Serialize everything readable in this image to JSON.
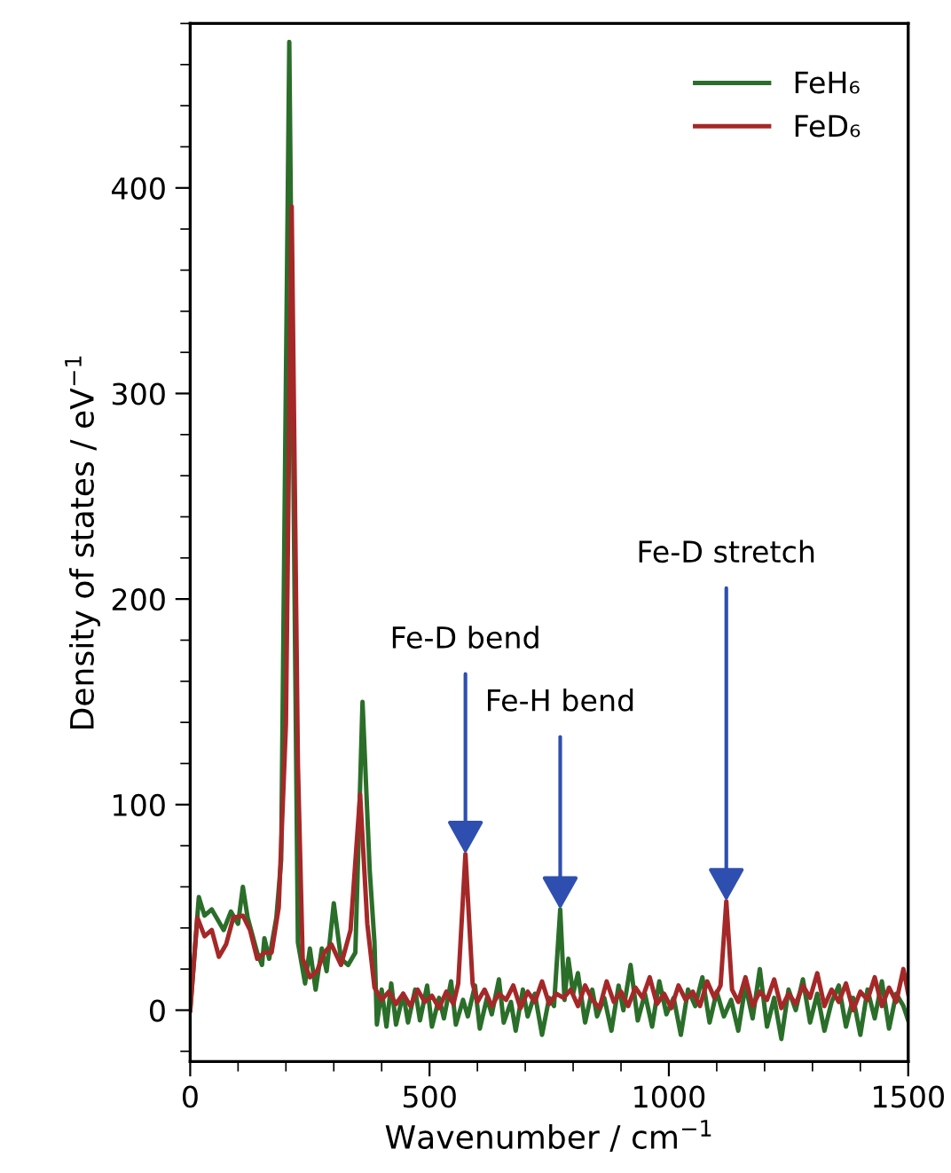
{
  "chart_data": {
    "type": "line",
    "xlabel": "Wavenumber / cm$^{−1}$",
    "ylabel": "Density of states / eV$^{−1}$",
    "xlim": [
      0,
      1500
    ],
    "ylim": [
      -25,
      480
    ],
    "xticks": [
      0,
      500,
      1000,
      1500
    ],
    "yticks": [
      0,
      100,
      200,
      300,
      400
    ],
    "legend": "top right",
    "grid": false,
    "line_style": "solid",
    "marker": "none",
    "series": [
      {
        "name": "FeH₆",
        "color": "#2a6e2a",
        "x": [
          0,
          18,
          30,
          45,
          55,
          70,
          85,
          100,
          110,
          120,
          140,
          150,
          155,
          165,
          180,
          190,
          207,
          225,
          240,
          250,
          262,
          275,
          285,
          300,
          315,
          330,
          345,
          360,
          375,
          385,
          390,
          400,
          410,
          420,
          430,
          445,
          455,
          470,
          480,
          495,
          505,
          520,
          530,
          545,
          555,
          570,
          580,
          595,
          605,
          620,
          630,
          645,
          655,
          670,
          680,
          695,
          705,
          720,
          735,
          750,
          760,
          773,
          782,
          790,
          800,
          810,
          825,
          840,
          850,
          865,
          880,
          895,
          905,
          920,
          935,
          950,
          965,
          980,
          995,
          1010,
          1025,
          1040,
          1055,
          1070,
          1085,
          1100,
          1115,
          1130,
          1145,
          1160,
          1175,
          1190,
          1205,
          1220,
          1235,
          1250,
          1265,
          1280,
          1295,
          1310,
          1325,
          1340,
          1355,
          1370,
          1385,
          1400,
          1415,
          1430,
          1445,
          1460,
          1475,
          1490,
          1500
        ],
        "values": [
          0,
          55,
          46,
          49,
          45,
          39,
          48,
          42,
          60,
          45,
          28,
          22,
          35,
          25,
          45,
          73,
          471,
          33,
          13,
          30,
          10,
          30,
          19,
          52,
          25,
          22,
          28,
          150,
          68,
          33,
          -7,
          10,
          -8,
          13,
          -7,
          8,
          -6,
          10,
          -5,
          12,
          -8,
          6,
          -4,
          14,
          -7,
          5,
          -3,
          12,
          -9,
          6,
          -2,
          15,
          -6,
          4,
          -10,
          10,
          -3,
          8,
          -12,
          6,
          2,
          49,
          5,
          25,
          8,
          18,
          -6,
          10,
          -3,
          6,
          -10,
          12,
          0,
          22,
          -5,
          8,
          -8,
          14,
          -2,
          6,
          -12,
          10,
          2,
          16,
          -6,
          9,
          -3,
          5,
          -10,
          12,
          -4,
          20,
          -8,
          6,
          -14,
          10,
          0,
          15,
          -6,
          8,
          -10,
          4,
          12,
          -8,
          6,
          -12,
          10,
          -4,
          14,
          -9,
          8,
          2,
          -5
        ]
      },
      {
        "name": "FeD₆",
        "color": "#a52828",
        "x": [
          0,
          15,
          30,
          45,
          60,
          75,
          90,
          110,
          125,
          140,
          155,
          170,
          185,
          200,
          212,
          225,
          235,
          250,
          265,
          280,
          295,
          315,
          335,
          355,
          370,
          385,
          400,
          415,
          430,
          445,
          460,
          475,
          490,
          505,
          520,
          535,
          550,
          560,
          575,
          590,
          600,
          615,
          630,
          645,
          660,
          675,
          690,
          705,
          720,
          735,
          750,
          765,
          780,
          795,
          810,
          825,
          840,
          855,
          870,
          885,
          900,
          915,
          930,
          945,
          960,
          975,
          990,
          1005,
          1020,
          1035,
          1050,
          1065,
          1080,
          1095,
          1108,
          1120,
          1132,
          1145,
          1160,
          1175,
          1190,
          1205,
          1220,
          1235,
          1250,
          1265,
          1280,
          1295,
          1310,
          1325,
          1340,
          1355,
          1370,
          1385,
          1400,
          1415,
          1430,
          1445,
          1460,
          1475,
          1490,
          1500
        ],
        "values": [
          0,
          45,
          36,
          39,
          26,
          32,
          45,
          46,
          39,
          25,
          28,
          28,
          50,
          139,
          391,
          120,
          25,
          16,
          19,
          28,
          32,
          22,
          39,
          105,
          42,
          11,
          5,
          9,
          3,
          8,
          2,
          10,
          4,
          7,
          1,
          9,
          3,
          13,
          76,
          13,
          4,
          10,
          2,
          8,
          5,
          12,
          1,
          9,
          4,
          14,
          3,
          8,
          6,
          10,
          2,
          12,
          5,
          1,
          14,
          4,
          9,
          2,
          11,
          6,
          16,
          3,
          8,
          1,
          12,
          5,
          9,
          2,
          14,
          6,
          12,
          53,
          10,
          4,
          16,
          2,
          9,
          5,
          15,
          1,
          8,
          3,
          12,
          6,
          18,
          2,
          10,
          4,
          13,
          0,
          9,
          5,
          16,
          2,
          11,
          4,
          20,
          8
        ]
      }
    ],
    "annotations": [
      {
        "text": "Fe-D bend",
        "x": 575,
        "y": 76
      },
      {
        "text": "Fe-H bend",
        "x": 773,
        "y": 49
      },
      {
        "text": "Fe-D stretch",
        "x": 1120,
        "y": 53
      }
    ]
  }
}
